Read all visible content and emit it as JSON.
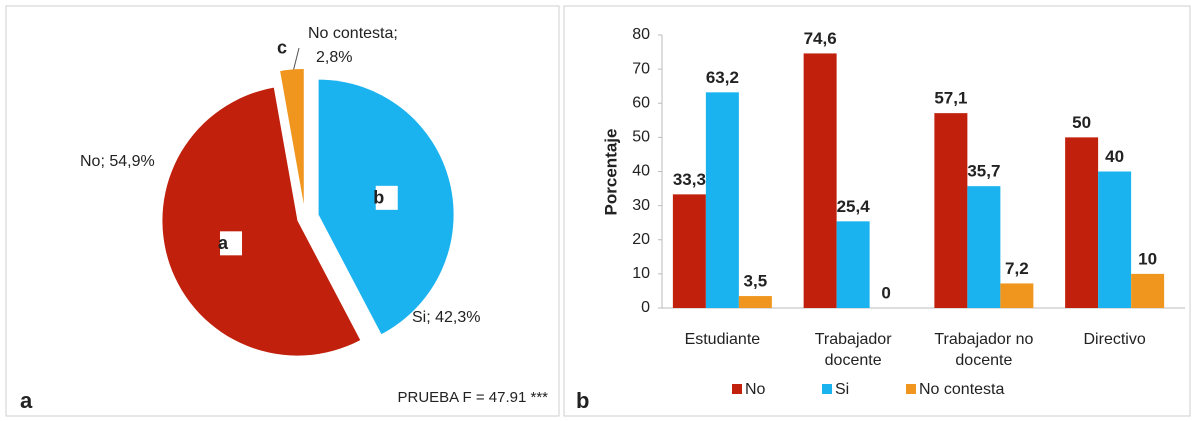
{
  "chart_data": [
    {
      "type": "pie",
      "panel_label": "a",
      "note": "PRUEBA F = 47.91 ***",
      "values": [
        54.9,
        42.3,
        2.8
      ],
      "value_labels": [
        "No; 54,9%",
        "Si; 42,3%",
        "No contesta; 2,8%"
      ],
      "slice_letters": [
        "a",
        "b",
        "c"
      ],
      "colors": [
        "#c0200c",
        "#1ab3f0",
        "#f0961e"
      ]
    },
    {
      "type": "bar",
      "panel_label": "b",
      "ylabel": "Porcentaje",
      "categories": [
        "Estudiante",
        "Trabajador docente",
        "Trabajador no docente",
        "Directivo"
      ],
      "series": [
        {
          "name": "No",
          "color": "#c0200c",
          "values": [
            33.3,
            74.6,
            57.1,
            50
          ],
          "value_labels": [
            "33,3",
            "74,6",
            "57,1",
            "50"
          ]
        },
        {
          "name": "Si",
          "color": "#1ab3f0",
          "values": [
            63.2,
            25.4,
            35.7,
            40
          ],
          "value_labels": [
            "63,2",
            "25,4",
            "35,7",
            "40"
          ]
        },
        {
          "name": "No contesta",
          "color": "#f0961e",
          "values": [
            3.5,
            0,
            7.2,
            10
          ],
          "value_labels": [
            "3,5",
            "0",
            "7,2",
            "10"
          ]
        }
      ],
      "ylim": [
        0,
        80
      ],
      "yticks": [
        0,
        10,
        20,
        30,
        40,
        50,
        60,
        70,
        80
      ],
      "legend": "bottom"
    }
  ]
}
